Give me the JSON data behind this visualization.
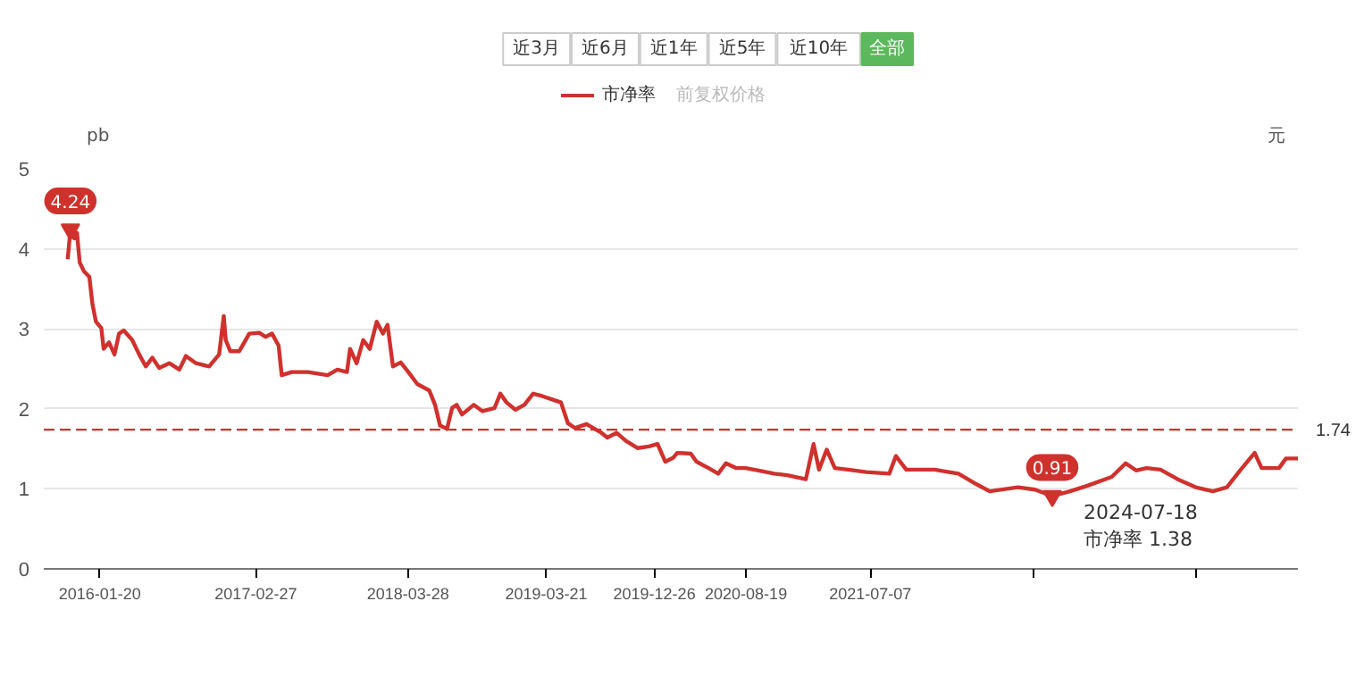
{
  "chart_data": {
    "type": "line",
    "ylabel": "pb",
    "y2label": "元",
    "x": [
      "2015-10-29",
      "2015-11-05",
      "2015-11-15",
      "2015-11-22",
      "2015-11-29",
      "2015-12-10",
      "2015-12-24",
      "2016-01-01",
      "2016-01-10",
      "2016-01-24",
      "2016-01-30",
      "2016-02-13",
      "2016-02-27",
      "2016-03-10",
      "2016-03-22",
      "2016-04-13",
      "2016-05-01",
      "2016-05-18",
      "2016-06-04",
      "2016-06-22",
      "2016-07-18",
      "2016-08-13",
      "2016-08-30",
      "2016-09-25",
      "2016-10-29",
      "2016-11-24",
      "2016-12-06",
      "2016-12-11",
      "2016-12-23",
      "2017-01-15",
      "2017-02-10",
      "2017-03-08",
      "2017-03-24",
      "2017-04-10",
      "2017-04-27",
      "2017-05-05",
      "2017-05-31",
      "2017-07-12",
      "2017-09-01",
      "2017-09-26",
      "2017-10-21",
      "2017-10-29",
      "2017-11-15",
      "2017-12-02",
      "2017-12-19",
      "2018-01-06",
      "2018-01-22",
      "2018-02-03",
      "2018-02-17",
      "2018-03-09",
      "2018-03-29",
      "2018-04-21",
      "2018-05-22",
      "2018-06-06",
      "2018-06-19",
      "2018-07-07",
      "2018-07-20",
      "2018-08-01",
      "2018-08-15",
      "2018-09-14",
      "2018-10-07",
      "2018-11-07",
      "2018-11-22",
      "2018-12-08",
      "2018-12-31",
      "2019-01-23",
      "2019-02-15",
      "2019-03-10",
      "2019-04-04",
      "2019-04-28",
      "2019-05-16",
      "2019-06-03",
      "2019-07-03",
      "2019-07-21",
      "2019-08-08",
      "2019-08-26",
      "2019-09-19",
      "2019-10-13",
      "2019-11-12",
      "2019-12-12",
      "2020-01-03",
      "2020-01-23",
      "2020-02-13",
      "2020-02-23",
      "2020-03-29",
      "2020-04-13",
      "2020-05-14",
      "2020-06-08",
      "2020-06-28",
      "2020-07-24",
      "2020-08-18",
      "2020-09-21",
      "2020-10-31",
      "2020-12-04",
      "2021-01-21",
      "2021-02-10",
      "2021-02-24",
      "2021-03-16",
      "2021-04-06",
      "2021-05-10",
      "2021-06-27",
      "2021-08-25",
      "2021-09-11",
      "2021-10-08",
      "2021-12-20",
      "2022-02-20",
      "2022-04-07",
      "2022-05-12",
      "2022-07-24",
      "2022-09-06",
      "2022-10-21",
      "2022-12-06",
      "2023-01-20",
      "2023-03-24",
      "2023-04-29",
      "2023-05-26",
      "2023-06-22",
      "2023-07-28",
      "2023-09-11",
      "2023-10-27",
      "2023-12-11",
      "2024-01-16",
      "2024-02-21",
      "2024-03-28",
      "2024-04-15",
      "2024-05-30",
      "2024-06-17",
      "2024-07-18"
    ],
    "series": [
      {
        "name": "市净率",
        "color": "#d0312d",
        "values": [
          3.87,
          4.24,
          4.13,
          4.2,
          3.83,
          3.72,
          3.65,
          3.31,
          3.09,
          3.01,
          2.75,
          2.83,
          2.68,
          2.94,
          2.98,
          2.86,
          2.68,
          2.53,
          2.64,
          2.51,
          2.57,
          2.49,
          2.66,
          2.57,
          2.53,
          2.68,
          3.16,
          2.86,
          2.72,
          2.72,
          2.94,
          2.95,
          2.9,
          2.94,
          2.79,
          2.42,
          2.46,
          2.46,
          2.42,
          2.49,
          2.46,
          2.75,
          2.57,
          2.86,
          2.75,
          3.09,
          2.94,
          3.05,
          2.53,
          2.58,
          2.46,
          2.31,
          2.23,
          2.05,
          1.79,
          1.75,
          2.01,
          2.05,
          1.93,
          2.05,
          1.97,
          2.01,
          2.19,
          2.08,
          1.99,
          2.05,
          2.19,
          2.16,
          2.12,
          2.08,
          1.82,
          1.76,
          1.81,
          1.76,
          1.71,
          1.64,
          1.7,
          1.6,
          1.51,
          1.53,
          1.56,
          1.34,
          1.39,
          1.45,
          1.44,
          1.34,
          1.26,
          1.19,
          1.32,
          1.26,
          1.26,
          1.23,
          1.19,
          1.17,
          1.12,
          1.56,
          1.24,
          1.49,
          1.26,
          1.24,
          1.21,
          1.19,
          1.41,
          1.24,
          1.24,
          1.19,
          1.06,
          0.97,
          1.02,
          0.99,
          0.91,
          0.97,
          1.04,
          1.15,
          1.32,
          1.23,
          1.26,
          1.24,
          1.12,
          1.02,
          0.97,
          1.02,
          1.24,
          1.45,
          1.26,
          1.26,
          1.38,
          1.38
        ]
      }
    ],
    "xlim": [
      "2015-08-28",
      "2024-07-18"
    ],
    "xticks": [
      {
        "value": "2016-01-20",
        "label": "2016-01-20"
      },
      {
        "value": "2017-02-27",
        "label": "2017-02-27"
      },
      {
        "value": "2018-03-28",
        "label": "2018-03-28"
      },
      {
        "value": "2019-03-21",
        "label": "2019-03-21"
      },
      {
        "value": "2019-12-26",
        "label": "2019-12-26"
      },
      {
        "value": "2020-08-19",
        "label": "2020-08-19"
      },
      {
        "value": "2021-07-07",
        "label": "2021-07-07"
      },
      {
        "value": "2022-09-01",
        "label": null
      },
      {
        "value": "2023-10-27",
        "label": null
      }
    ],
    "ylim": [
      0,
      5
    ],
    "yticks": [
      0,
      1,
      2,
      3,
      4,
      5
    ],
    "grid": "y",
    "legend": "top",
    "marker": "none",
    "line_style": "solid",
    "ref_lines": [
      {
        "axis": "y",
        "value": 1.74,
        "label": "1.74",
        "color": "#d0312d",
        "line_style": "dashed"
      }
    ],
    "annotations": [
      {
        "text": "4.24",
        "x": "2015-11-05",
        "y": 4.24
      },
      {
        "text": "0.91",
        "x": "2022-10-21",
        "y": 0.91
      },
      "2024-07-18",
      "市净率 1.38",
      "近3月",
      "近6月",
      "近1年",
      "近5年",
      "近10年",
      "全部",
      "前复权价格"
    ]
  }
}
